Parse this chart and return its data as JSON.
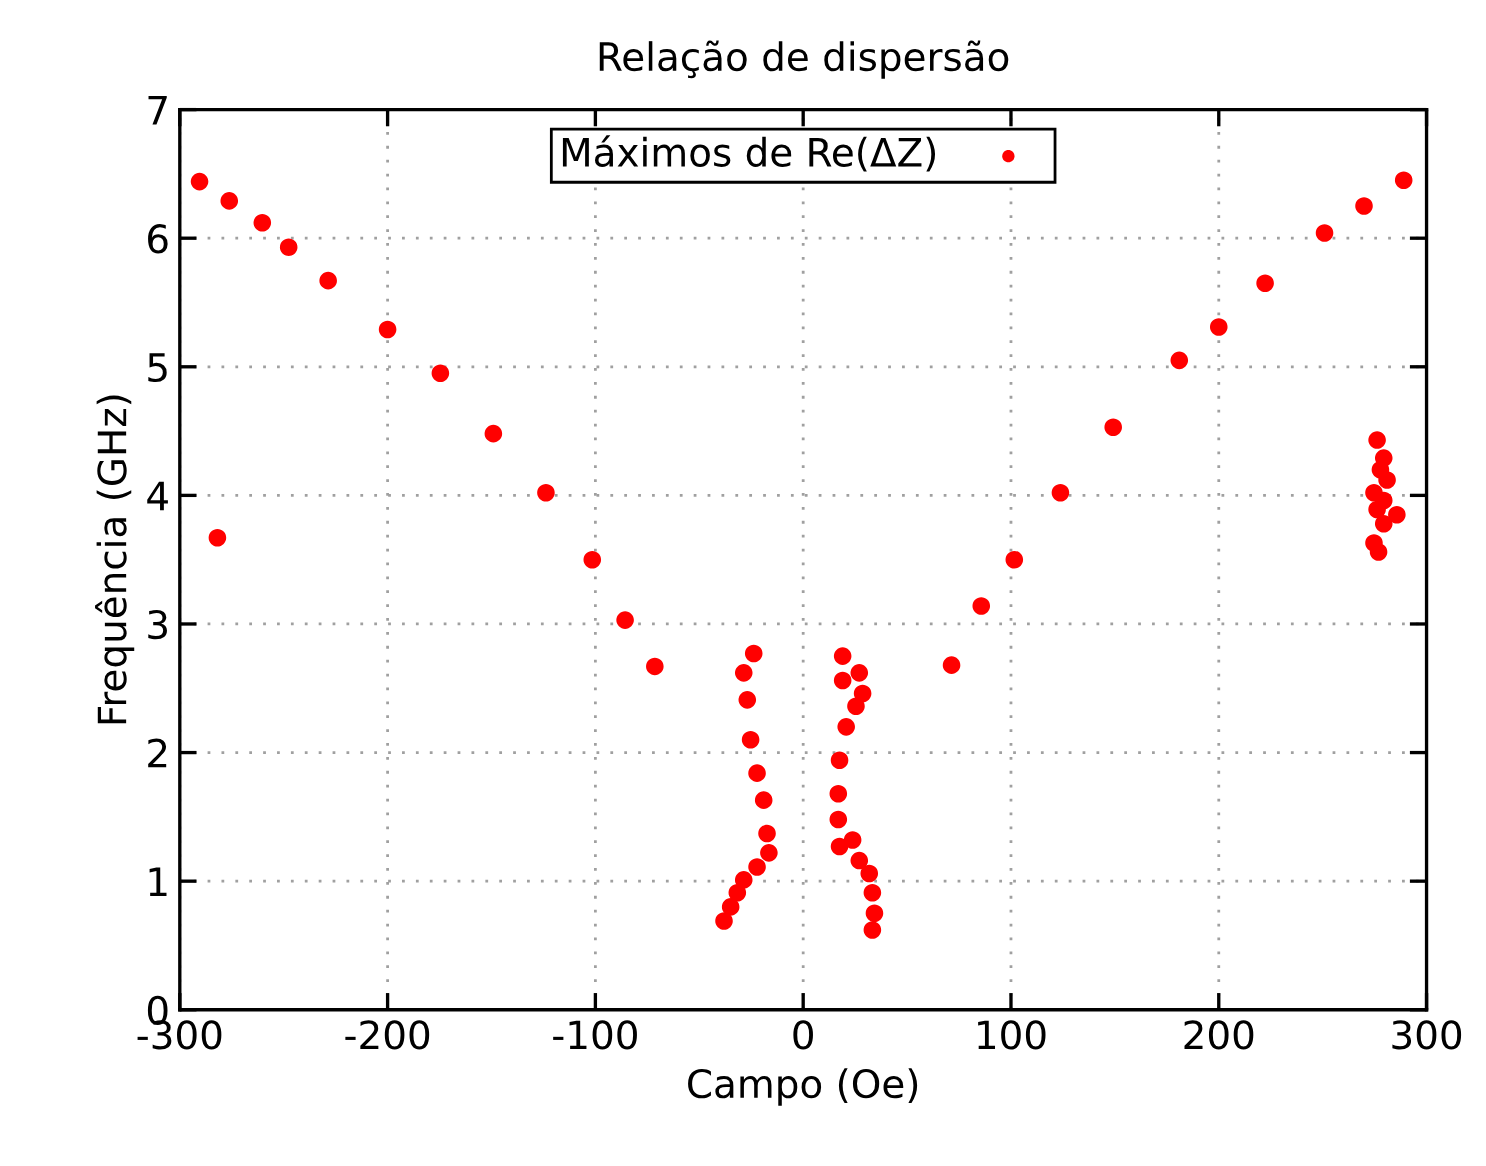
{
  "chart_data": {
    "type": "scatter",
    "title": "Relação de dispersão",
    "xlabel": "Campo (Oe)",
    "ylabel": "Frequência (GHz)",
    "xlim": [
      -300,
      300
    ],
    "xticks": [
      -300,
      -200,
      -100,
      0,
      100,
      200,
      300
    ],
    "ylim": [
      0,
      7
    ],
    "yticks": [
      0,
      1,
      2,
      3,
      4,
      5,
      6,
      7
    ],
    "grid": true,
    "legend": "top",
    "marker": "circle",
    "series": [
      {
        "name": "Máximos de Re(ΔZ)",
        "color": "#ff0000",
        "x": [
          -290.5,
          -276.2,
          -260.3,
          -247.6,
          -228.6,
          -200,
          -174.6,
          -149.1,
          -123.8,
          -101.5,
          -85.7,
          -71.4,
          -281.9,
          71.4,
          85.7,
          101.6,
          123.8,
          149.2,
          181,
          200,
          222.3,
          250.9,
          269.9,
          289,
          276.2,
          279.4,
          277.8,
          281,
          274.7,
          279.4,
          276.2,
          285.7,
          279.4,
          274.7,
          276.9,
          -23.8,
          -28.6,
          -26.9,
          -25.3,
          -22.2,
          -19,
          -17.4,
          -16.5,
          -22.2,
          -28.6,
          -31.7,
          -34.9,
          -38.1,
          19,
          19,
          27,
          28.6,
          25.4,
          20.7,
          17.5,
          16.9,
          16.9,
          17.5,
          23.8,
          27,
          31.8,
          33.3,
          34.3,
          33.3
        ],
        "values": [
          6.44,
          6.29,
          6.12,
          5.93,
          5.67,
          5.29,
          4.95,
          4.48,
          4.02,
          3.5,
          3.03,
          2.67,
          3.67,
          2.68,
          3.14,
          3.5,
          4.02,
          4.53,
          5.05,
          5.31,
          5.65,
          6.04,
          6.25,
          6.45,
          4.43,
          4.29,
          4.2,
          4.12,
          4.02,
          3.96,
          3.89,
          3.85,
          3.78,
          3.63,
          3.56,
          2.77,
          2.62,
          2.41,
          2.1,
          1.84,
          1.63,
          1.37,
          1.22,
          1.11,
          1.01,
          0.91,
          0.8,
          0.69,
          2.75,
          2.56,
          2.62,
          2.46,
          2.36,
          2.2,
          1.94,
          1.68,
          1.48,
          1.27,
          1.32,
          1.16,
          1.06,
          0.91,
          0.75,
          0.62
        ]
      }
    ]
  }
}
